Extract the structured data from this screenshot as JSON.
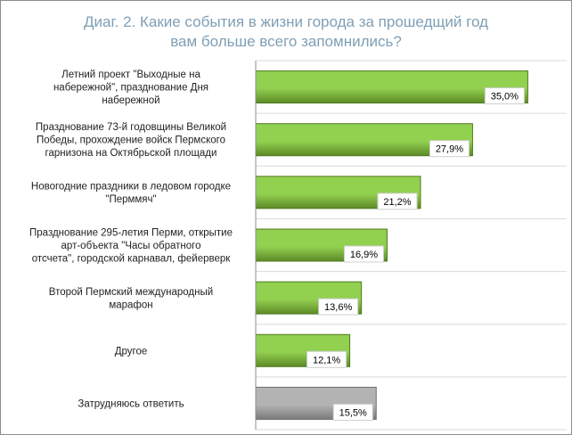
{
  "title_line1": "Диаг. 2. Какие события в жизни города за прошедщий год",
  "title_line2": "вам больше всего запомнились?",
  "colors": {
    "bar": "#92d050",
    "bar_dark": "#5c8a26",
    "other_bar": "#b3b3b3",
    "other_bar_dark": "#7a7a7a",
    "title": "#7f9fb5",
    "grid": "#d9d9d9"
  },
  "chart_data": {
    "type": "bar",
    "orientation": "horizontal",
    "title": "Диаг. 2. Какие события в жизни города за прошедщий год вам больше всего запомнились?",
    "categories": [
      [
        "Летний проект \"Выходные на",
        "набережной\", празднование Дня",
        "набережной"
      ],
      [
        "Празднование 73-й годовщины Великой",
        "Победы, прохождение войск Пермского",
        "гарнизона на Октябрьской площади"
      ],
      [
        "Новогодние праздники в ледовом городке",
        "\"Перммяч\""
      ],
      [
        "Празднование 295-летия Перми, открытие",
        "арт-объекта \"Часы обратного",
        "отсчета\", городской карнавал, фейерверк"
      ],
      [
        "Второй Пермский международный",
        "марафон"
      ],
      [
        "Другое"
      ],
      [
        "Затрудняюсь ответить"
      ]
    ],
    "values": [
      35.0,
      27.9,
      21.2,
      16.9,
      13.6,
      12.1,
      15.5
    ],
    "value_labels": [
      "35,0%",
      "27,9%",
      "21,2%",
      "16,9%",
      "13,6%",
      "12,1%",
      "15,5%"
    ],
    "bar_kinds": [
      "main",
      "main",
      "main",
      "main",
      "main",
      "main",
      "other"
    ],
    "xlim": [
      0,
      40
    ],
    "grid": true,
    "legend": "none"
  }
}
